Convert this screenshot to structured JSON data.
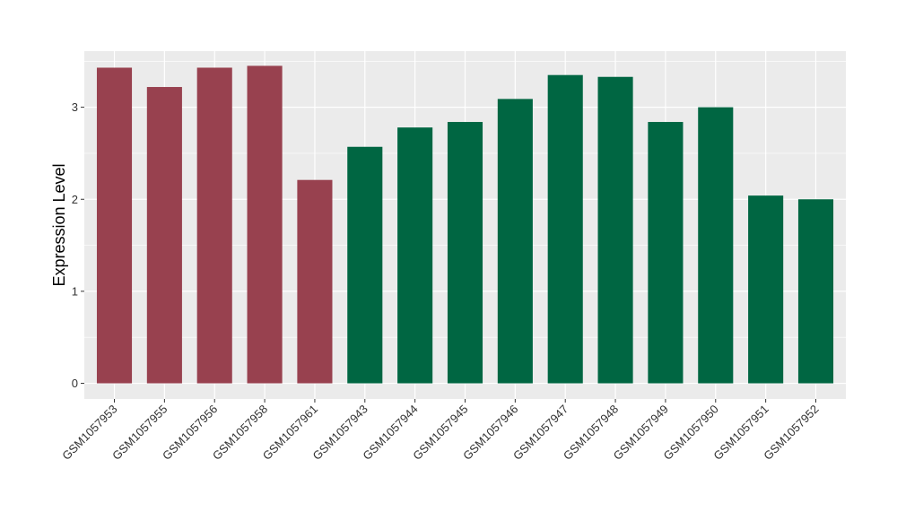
{
  "chart_data": {
    "type": "bar",
    "title": "",
    "xlabel": "",
    "ylabel": "Expression Level",
    "ylim": [
      -0.17,
      3.61
    ],
    "yticks": [
      0,
      1,
      2,
      3
    ],
    "grid": true,
    "categories": [
      "GSM1057953",
      "GSM1057955",
      "GSM1057956",
      "GSM1057958",
      "GSM1057961",
      "GSM1057943",
      "GSM1057944",
      "GSM1057945",
      "GSM1057946",
      "GSM1057947",
      "GSM1057948",
      "GSM1057949",
      "GSM1057950",
      "GSM1057951",
      "GSM1057952"
    ],
    "values": [
      3.43,
      3.22,
      3.43,
      3.45,
      2.21,
      2.57,
      2.78,
      2.84,
      3.09,
      3.35,
      3.33,
      2.84,
      3.0,
      2.04,
      2.0
    ],
    "bar_colors": [
      "#98414F",
      "#98414F",
      "#98414F",
      "#98414F",
      "#98414F",
      "#006642",
      "#006642",
      "#006642",
      "#006642",
      "#006642",
      "#006642",
      "#006642",
      "#006642",
      "#006642",
      "#006642"
    ],
    "panel_background": "#EBEBEB",
    "legend": "none"
  }
}
